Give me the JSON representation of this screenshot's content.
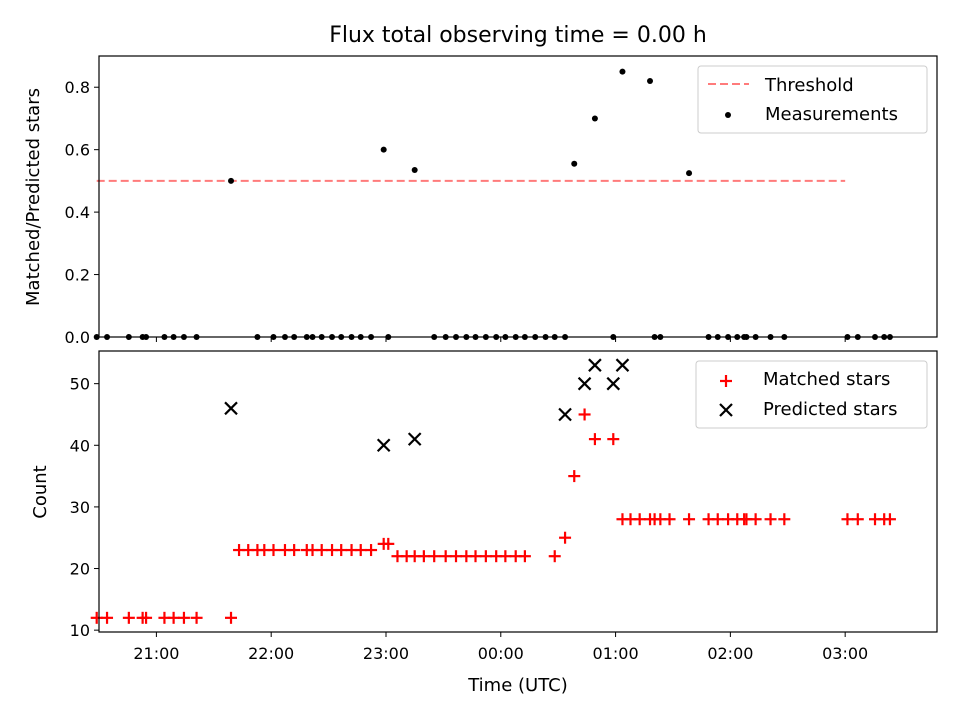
{
  "chart_data": [
    {
      "type": "scatter",
      "title": "Flux total observing time = 0.00 h",
      "xlabel": "",
      "ylabel": "Matched/Predicted stars",
      "xlim": [
        -3.5,
        3.8
      ],
      "ylim": [
        0.0,
        0.9
      ],
      "yticks": [
        0.0,
        0.2,
        0.4,
        0.6,
        0.8
      ],
      "ytick_labels": [
        "0.0",
        "0.2",
        "0.4",
        "0.6",
        "0.8"
      ],
      "xticks": [
        -3,
        -2,
        -1,
        0,
        1,
        2,
        3
      ],
      "legend": {
        "position": "top-right",
        "entries": [
          {
            "label": "Threshold",
            "kind": "dashed-line",
            "color": "#ff7b7b"
          },
          {
            "label": "Measurements",
            "kind": "dot",
            "color": "#000000"
          }
        ]
      },
      "threshold": {
        "name": "Threshold",
        "y": 0.5,
        "x_range": [
          -3.52,
          3.0
        ],
        "color": "#ff7b7b"
      },
      "series": [
        {
          "name": "Measurements",
          "color": "#000000",
          "x": [
            -3.52,
            -3.43,
            -3.24,
            -3.12,
            -3.09,
            -2.93,
            -2.85,
            -2.76,
            -2.65,
            -2.35,
            -2.12,
            -1.98,
            -1.88,
            -1.8,
            -1.69,
            -1.64,
            -1.56,
            -1.47,
            -1.39,
            -1.3,
            -1.22,
            -1.13,
            -1.02,
            -0.98,
            -0.75,
            -0.58,
            -0.48,
            -0.39,
            -0.3,
            -0.22,
            -0.13,
            -0.04,
            0.04,
            0.13,
            0.21,
            0.3,
            0.39,
            0.47,
            0.56,
            0.64,
            0.82,
            0.98,
            1.06,
            1.3,
            1.34,
            1.39,
            1.64,
            1.81,
            1.89,
            1.98,
            2.06,
            2.12,
            2.14,
            2.22,
            2.35,
            2.47,
            3.02,
            3.11,
            3.26,
            3.34,
            3.39
          ],
          "y": [
            0.0,
            0.0,
            0.0,
            0.0,
            0.0,
            0.0,
            0.0,
            0.0,
            0.0,
            0.5,
            0.0,
            0.0,
            0.0,
            0.0,
            0.0,
            0.0,
            0.0,
            0.0,
            0.0,
            0.0,
            0.0,
            0.0,
            0.6,
            0.0,
            0.535,
            0.0,
            0.0,
            0.0,
            0.0,
            0.0,
            0.0,
            0.0,
            0.0,
            0.0,
            0.0,
            0.0,
            0.0,
            0.0,
            0.0,
            0.555,
            0.7,
            0.0,
            0.85,
            0.82,
            0.0,
            0.0,
            0.525,
            0.0,
            0.0,
            0.0,
            0.0,
            0.0,
            0.0,
            0.0,
            0.0,
            0.0,
            0.0,
            0.0,
            0.0,
            0.0,
            0.0
          ]
        }
      ]
    },
    {
      "type": "scatter",
      "title": "",
      "xlabel": "Time (UTC)",
      "ylabel": "Count",
      "xlim": [
        -3.5,
        3.8
      ],
      "ylim": [
        9.7,
        55.3
      ],
      "yticks": [
        10,
        20,
        30,
        40,
        50
      ],
      "ytick_labels": [
        "10",
        "20",
        "30",
        "40",
        "50"
      ],
      "xticks": [
        -3,
        -2,
        -1,
        0,
        1,
        2,
        3
      ],
      "xtick_labels": [
        "21:00",
        "22:00",
        "23:00",
        "00:00",
        "01:00",
        "02:00",
        "03:00"
      ],
      "legend": {
        "position": "top-right",
        "entries": [
          {
            "label": "Matched stars",
            "kind": "plus",
            "color": "#ff0000"
          },
          {
            "label": "Predicted stars",
            "kind": "cross",
            "color": "#000000"
          }
        ]
      },
      "series": [
        {
          "name": "Matched stars",
          "color": "#ff0000",
          "marker": "plus",
          "x": [
            -3.52,
            -3.43,
            -3.24,
            -3.12,
            -3.09,
            -2.93,
            -2.85,
            -2.76,
            -2.65,
            -2.35,
            -2.28,
            -2.2,
            -2.12,
            -2.06,
            -1.98,
            -1.88,
            -1.8,
            -1.69,
            -1.64,
            -1.56,
            -1.47,
            -1.39,
            -1.3,
            -1.22,
            -1.13,
            -1.02,
            -0.98,
            -0.9,
            -0.82,
            -0.75,
            -0.67,
            -0.58,
            -0.48,
            -0.39,
            -0.3,
            -0.22,
            -0.13,
            -0.04,
            0.04,
            0.13,
            0.21,
            0.47,
            0.56,
            0.64,
            0.73,
            0.82,
            0.98,
            1.06,
            1.13,
            1.21,
            1.3,
            1.34,
            1.39,
            1.47,
            1.64,
            1.81,
            1.89,
            1.98,
            2.06,
            2.12,
            2.14,
            2.22,
            2.35,
            2.47,
            3.02,
            3.11,
            3.26,
            3.34,
            3.39
          ],
          "y": [
            12,
            12,
            12,
            12,
            12,
            12,
            12,
            12,
            12,
            12,
            23,
            23,
            23,
            23,
            23,
            23,
            23,
            23,
            23,
            23,
            23,
            23,
            23,
            23,
            23,
            24,
            24,
            22,
            22,
            22,
            22,
            22,
            22,
            22,
            22,
            22,
            22,
            22,
            22,
            22,
            22,
            22,
            25,
            35,
            45,
            41,
            41,
            28,
            28,
            28,
            28,
            28,
            28,
            28,
            28,
            28,
            28,
            28,
            28,
            28,
            28,
            28,
            28,
            28,
            28,
            28,
            28,
            28,
            28
          ]
        },
        {
          "name": "Predicted stars",
          "color": "#000000",
          "marker": "cross",
          "x": [
            -2.35,
            -1.02,
            -0.75,
            0.56,
            0.73,
            0.82,
            0.98,
            1.06
          ],
          "y": [
            46,
            40,
            41,
            45,
            50,
            53,
            50,
            53
          ]
        }
      ]
    }
  ]
}
